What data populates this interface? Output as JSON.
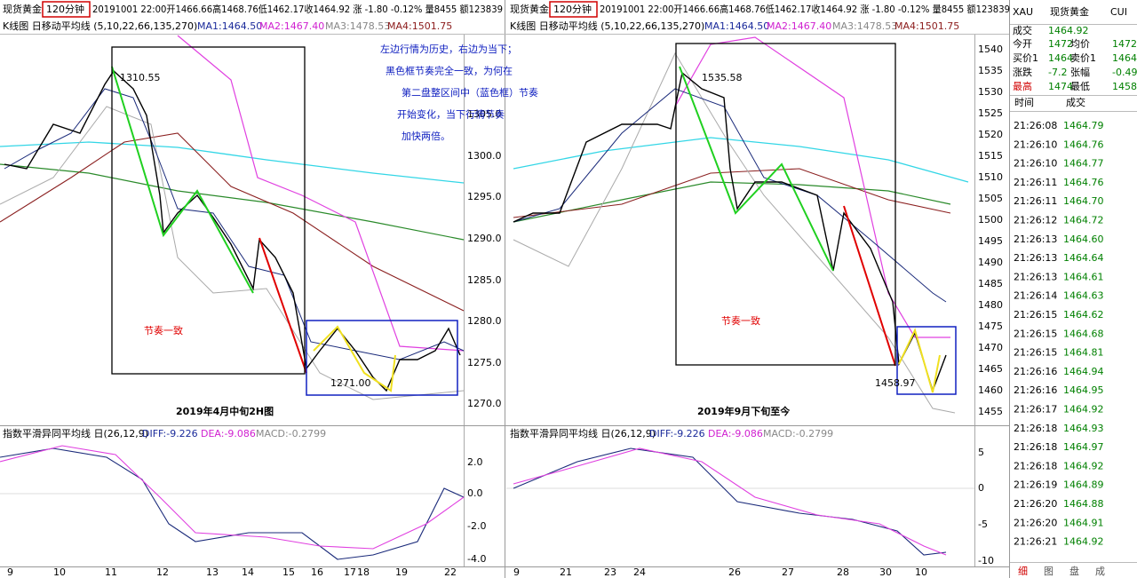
{
  "panels": [
    {
      "header": {
        "name": "现货黄金",
        "period": "120分钟",
        "quote": "20191001 22:00开1466.66高1468.76低1462.17收1464.92 涨 -1.80 -0.12% 量8455 额123839"
      },
      "ma_line": {
        "title": "K线图 日移动平均线 (5,10,22,66,135,270)",
        "ma1": "MA1:1464.50",
        "ma2": "MA2:1467.40",
        "ma3": "MA3:1478.53",
        "ma4": "MA4:1501.75"
      },
      "yticks": [
        "1305.0",
        "1300.0",
        "1295.0",
        "1290.0",
        "1285.0",
        "1280.0",
        "1275.0",
        "1270.0"
      ],
      "high_label": "1310.55",
      "low_label": "1271.00",
      "box_label": "节奏一致",
      "caption": "2019年4月中旬2H图",
      "macd": {
        "title": "指数平滑异同平均线 日(26,12,9)",
        "diff": "DIFF:-9.226",
        "dea": "DEA:-9.086",
        "macd": "MACD:-0.2799",
        "yticks": [
          "2.0",
          "0.0",
          "-2.0",
          "-4.0"
        ]
      },
      "xlabels": [
        "9",
        "10",
        "11",
        "12",
        "13",
        "14",
        "15",
        "16",
        "17",
        "18",
        "19",
        "22"
      ]
    },
    {
      "header": {
        "name": "现货黄金",
        "period": "120分钟",
        "quote": "20191001 22:00开1466.66高1468.76低1462.17收1464.92 涨 -1.80 -0.12% 量8455 额123839"
      },
      "ma_line": {
        "title": "K线图 日移动平均线 (5,10,22,66,135,270)",
        "ma1": "MA1:1464.50",
        "ma2": "MA2:1467.40",
        "ma3": "MA3:1478.53",
        "ma4": "MA4:1501.75"
      },
      "yticks": [
        "1540",
        "1535",
        "1530",
        "1525",
        "1520",
        "1515",
        "1510",
        "1505",
        "1500",
        "1495",
        "1490",
        "1485",
        "1480",
        "1475",
        "1470",
        "1465",
        "1460",
        "1455"
      ],
      "high_label": "1535.58",
      "low_label": "1458.97",
      "box_label": "节奏一致",
      "caption": "2019年9月下旬至今",
      "macd": {
        "title": "指数平滑异同平均线 日(26,12,9)",
        "diff": "DIFF:-9.226",
        "dea": "DEA:-9.086",
        "macd": "MACD:-0.2799",
        "yticks": [
          "5",
          "0",
          "-5",
          "-10"
        ]
      },
      "xlabels": [
        "9",
        "21",
        "23",
        "24",
        "26",
        "27",
        "28",
        "30",
        "10"
      ]
    }
  ],
  "annotation": [
    "左边行情为历史，右边为当下；",
    "黑色框节奏完全一致，为何在",
    "第二盘整区间中（蓝色框）节奏",
    "开始变化，当下行情节奏",
    "加快两倍。"
  ],
  "quote_panel": {
    "symbol": "XAU",
    "name": "现货黄金",
    "extra": "CUI",
    "last_label": "成交",
    "last": "1464.92",
    "rows": [
      [
        "今开",
        "1472",
        "均价",
        "1472"
      ],
      [
        "买价1",
        "1464",
        "卖价1",
        "1464"
      ],
      [
        "涨跌",
        "-7.2",
        "张幅",
        "-0.49"
      ],
      [
        "最高",
        "1474",
        "最低",
        "1458"
      ]
    ],
    "list_header": [
      "时间",
      "成交"
    ],
    "ticks": [
      [
        "21:26:08",
        "1464.79"
      ],
      [
        "21:26:10",
        "1464.76"
      ],
      [
        "21:26:10",
        "1464.77"
      ],
      [
        "21:26:11",
        "1464.76"
      ],
      [
        "21:26:11",
        "1464.70"
      ],
      [
        "21:26:12",
        "1464.72"
      ],
      [
        "21:26:13",
        "1464.60"
      ],
      [
        "21:26:13",
        "1464.64"
      ],
      [
        "21:26:13",
        "1464.61"
      ],
      [
        "21:26:14",
        "1464.63"
      ],
      [
        "21:26:15",
        "1464.62"
      ],
      [
        "21:26:15",
        "1464.68"
      ],
      [
        "21:26:15",
        "1464.81"
      ],
      [
        "21:26:16",
        "1464.94"
      ],
      [
        "21:26:16",
        "1464.95"
      ],
      [
        "21:26:17",
        "1464.92"
      ],
      [
        "21:26:18",
        "1464.93"
      ],
      [
        "21:26:18",
        "1464.97"
      ],
      [
        "21:26:18",
        "1464.92"
      ],
      [
        "21:26:19",
        "1464.89"
      ],
      [
        "21:26:20",
        "1464.88"
      ],
      [
        "21:26:20",
        "1464.91"
      ],
      [
        "21:26:21",
        "1464.92"
      ]
    ],
    "tabs": [
      "细",
      "图",
      "盘",
      "成"
    ]
  }
}
